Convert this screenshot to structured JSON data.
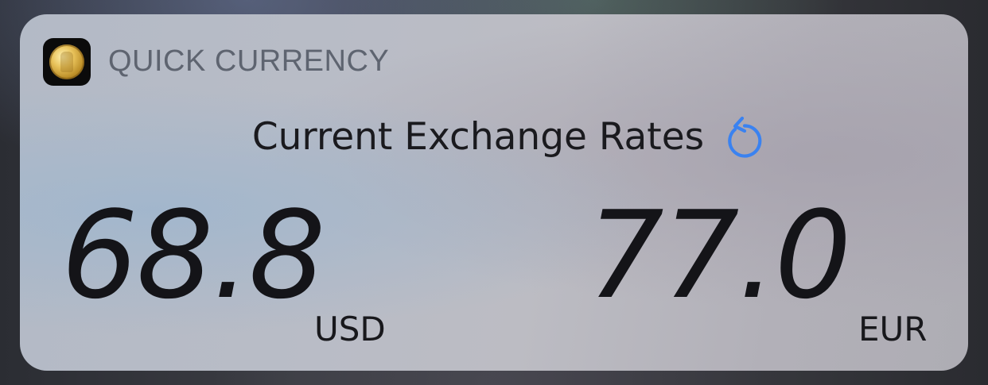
{
  "app": {
    "name": "QUICK CURRENCY",
    "icon": "gold-coin-icon"
  },
  "widget": {
    "title": "Current Exchange Rates",
    "refresh_icon": "refresh-icon",
    "accent_color": "#3a82f0"
  },
  "rates": [
    {
      "value": "68.8",
      "code": "USD"
    },
    {
      "value": "77.0",
      "code": "EUR"
    }
  ]
}
